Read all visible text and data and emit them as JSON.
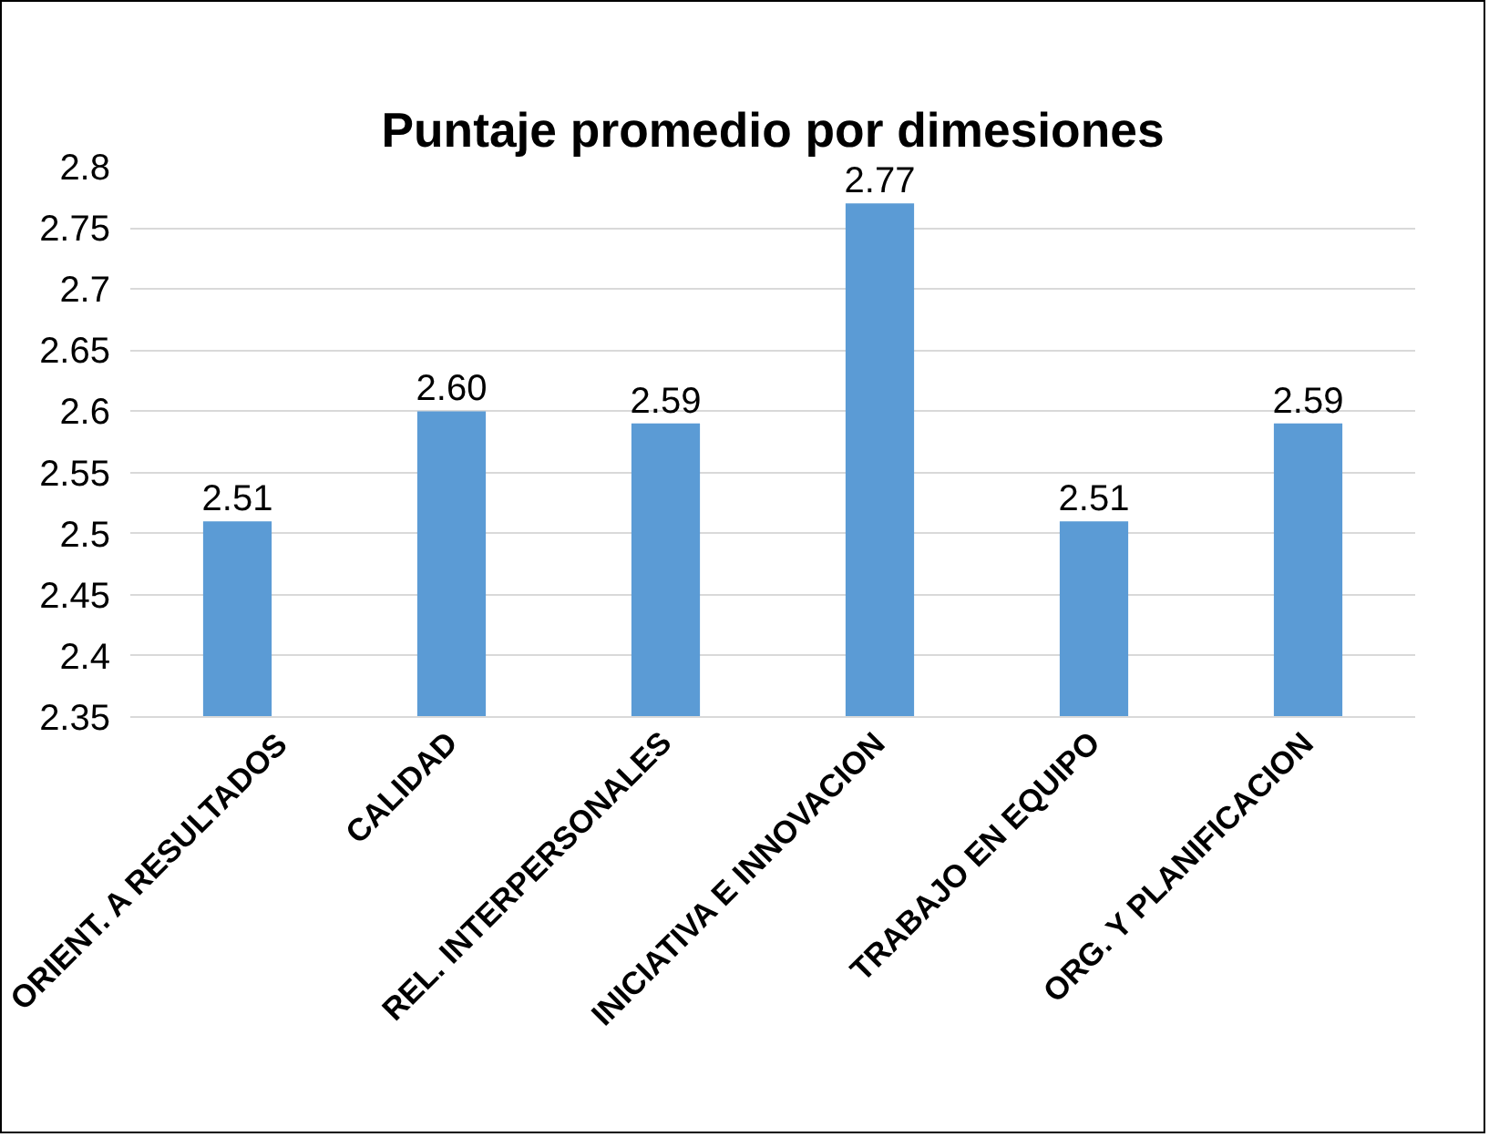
{
  "chart_data": {
    "type": "bar",
    "title": "Puntaje promedio por dimesiones",
    "categories": [
      "ORIENT. A RESULTADOS",
      "CALIDAD",
      "REL. INTERPERSONALES",
      "INICIATIVA E INNOVACION",
      "TRABAJO EN EQUIPO",
      "ORG. Y PLANIFICACION"
    ],
    "values": [
      2.51,
      2.6,
      2.59,
      2.77,
      2.51,
      2.59
    ],
    "value_labels": [
      "2.51",
      "2.60",
      "2.59",
      "2.77",
      "2.51",
      "2.59"
    ],
    "color": "#5b9bd5",
    "ylim": [
      2.35,
      2.8
    ],
    "yticks": [
      2.35,
      2.4,
      2.45,
      2.5,
      2.55,
      2.6,
      2.65,
      2.7,
      2.75,
      2.8
    ],
    "grid": "y"
  }
}
